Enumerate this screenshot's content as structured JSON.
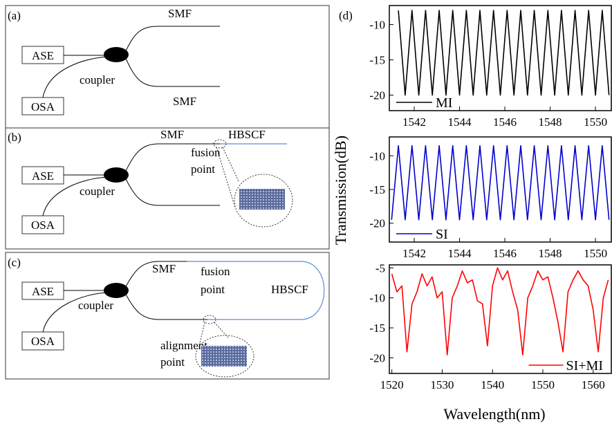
{
  "panels": [
    {
      "label": "(a)",
      "ase": "ASE",
      "osa": "OSA",
      "coupler": "coupler",
      "smf": [
        "SMF",
        "SMF"
      ]
    },
    {
      "label": "(b)",
      "ase": "ASE",
      "osa": "OSA",
      "coupler": "coupler",
      "smf": "SMF",
      "hbscf": "HBSCF",
      "fusion_point": [
        "fusion",
        "point"
      ]
    },
    {
      "label": "(c)",
      "ase": "ASE",
      "osa": "OSA",
      "coupler": "coupler",
      "smf": "SMF",
      "hbscf": "HBSCF",
      "fusion_point": [
        "fusion",
        "point"
      ],
      "alignment_point": [
        "alignment",
        "point"
      ]
    }
  ],
  "panel_d": {
    "label": "(d)",
    "y_label": "Transmission(dB)",
    "x_label": "Wavelength(nm)"
  },
  "chart_data": [
    {
      "type": "line",
      "x": [
        1541.3,
        1541.6,
        1541.9,
        1542.2,
        1542.5,
        1542.8,
        1543.1,
        1543.4,
        1543.7,
        1544.0,
        1544.3,
        1544.6,
        1544.9,
        1545.2,
        1545.5,
        1545.8,
        1546.1,
        1546.4,
        1546.7,
        1547.0,
        1547.3,
        1547.6,
        1547.9,
        1548.2,
        1548.5,
        1548.8,
        1549.1,
        1549.4,
        1549.7,
        1550.0,
        1550.3,
        1550.6
      ],
      "series": [
        {
          "name": "MI",
          "color": "#000000",
          "values": [
            -8,
            -20,
            -8,
            -20,
            -8,
            -20,
            -8,
            -20,
            -8,
            -20,
            -8,
            -20,
            -8,
            -20,
            -8,
            -20,
            -8,
            -20,
            -8,
            -20,
            -8,
            -20,
            -8,
            -20,
            -8,
            -20,
            -8,
            -20,
            -8,
            -20,
            -8,
            -20
          ]
        }
      ],
      "xlim": [
        1540.9,
        1550.7
      ],
      "ylim": [
        -22.2,
        -7.3
      ],
      "xticks": [
        1542,
        1544,
        1546,
        1548,
        1550
      ],
      "yticks": [
        -20,
        -15,
        -10
      ],
      "legend": "lower left"
    },
    {
      "type": "line",
      "x": [
        1541.0,
        1541.3,
        1541.6,
        1541.9,
        1542.2,
        1542.5,
        1542.8,
        1543.1,
        1543.4,
        1543.7,
        1544.0,
        1544.3,
        1544.6,
        1544.9,
        1545.2,
        1545.5,
        1545.8,
        1546.1,
        1546.4,
        1546.7,
        1547.0,
        1547.3,
        1547.6,
        1547.9,
        1548.2,
        1548.5,
        1548.8,
        1549.1,
        1549.4,
        1549.7,
        1550.0,
        1550.3,
        1550.6
      ],
      "series": [
        {
          "name": "SI",
          "color": "#0000cc",
          "values": [
            -19.5,
            -8.5,
            -19.5,
            -8.5,
            -19.5,
            -8.5,
            -19.5,
            -8.5,
            -19.5,
            -8.5,
            -19.5,
            -8.5,
            -19.5,
            -8.5,
            -19.5,
            -8.5,
            -19.5,
            -8.5,
            -19.5,
            -8.5,
            -19.5,
            -8.5,
            -19.5,
            -8.5,
            -19.5,
            -8.5,
            -19.5,
            -8.5,
            -19.5,
            -8.5,
            -19.5,
            -8.5,
            -19.5
          ]
        }
      ],
      "xlim": [
        1540.9,
        1550.7
      ],
      "ylim": [
        -22.8,
        -7.2
      ],
      "xticks": [
        1542,
        1544,
        1546,
        1548,
        1550
      ],
      "yticks": [
        -20,
        -15,
        -10
      ],
      "legend": "lower left"
    },
    {
      "type": "line",
      "x": [
        1520,
        1521,
        1522,
        1523,
        1524,
        1525,
        1526,
        1527,
        1528,
        1529,
        1530,
        1531,
        1532,
        1533,
        1534,
        1535,
        1536,
        1537,
        1538,
        1539,
        1540,
        1541,
        1542,
        1543,
        1544,
        1545,
        1546,
        1547,
        1548,
        1549,
        1550,
        1551,
        1552,
        1553,
        1554,
        1555,
        1556,
        1557,
        1558,
        1559,
        1560,
        1561,
        1562,
        1563
      ],
      "series": [
        {
          "name": "SI+MI",
          "color": "#ff0000",
          "values": [
            -6,
            -9,
            -8,
            -19,
            -11,
            -9,
            -6,
            -8,
            -6.5,
            -10,
            -9,
            -19.5,
            -10,
            -8,
            -5.5,
            -7.5,
            -7,
            -10.5,
            -11,
            -18,
            -8,
            -5,
            -7,
            -5.5,
            -9,
            -12,
            -19.5,
            -10,
            -8,
            -5.5,
            -7,
            -6.5,
            -10,
            -14,
            -19,
            -9,
            -7,
            -5.5,
            -7,
            -8,
            -12,
            -19,
            -10,
            -7
          ]
        }
      ],
      "xlim": [
        1519.5,
        1563.6
      ],
      "ylim": [
        -22.6,
        -4.5
      ],
      "xticks": [
        1520,
        1530,
        1540,
        1550,
        1560
      ],
      "yticks": [
        -20,
        -15,
        -10,
        -5
      ],
      "legend": "lower right"
    }
  ]
}
